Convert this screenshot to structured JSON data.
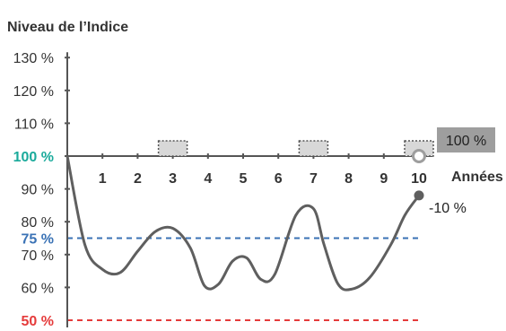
{
  "chart_data": {
    "type": "line",
    "title": "Niveau de l’Indice",
    "xlabel": "Années",
    "x_ticks": [
      "1",
      "2",
      "3",
      "4",
      "5",
      "6",
      "7",
      "8",
      "9",
      "10"
    ],
    "xlim": [
      0,
      10
    ],
    "ylim": [
      50,
      130
    ],
    "y_ticks": [
      {
        "value": 130,
        "label": "130 %"
      },
      {
        "value": 120,
        "label": "120 %"
      },
      {
        "value": 110,
        "label": "110 %"
      },
      {
        "value": 100,
        "label": "100 %"
      },
      {
        "value": 90,
        "label": "90 %"
      },
      {
        "value": 80,
        "label": "80 %"
      },
      {
        "value": 70,
        "label": "70 %"
      },
      {
        "value": 60,
        "label": "60 %"
      }
    ],
    "reference_lines": [
      {
        "value": 100,
        "label": "100 %",
        "color": "#1aaa9b"
      },
      {
        "value": 75,
        "label": "75 %",
        "color": "#3a72b5"
      },
      {
        "value": 50,
        "label": "50 %",
        "color": "#e53b3b"
      }
    ],
    "series": [
      {
        "color": "#5f5f5f",
        "points": [
          [
            0,
            100
          ],
          [
            0.5,
            73
          ],
          [
            1,
            65.5
          ],
          [
            1.5,
            64.5
          ],
          [
            2,
            71
          ],
          [
            2.5,
            77
          ],
          [
            3,
            78
          ],
          [
            3.5,
            72
          ],
          [
            3.9,
            60.5
          ],
          [
            4.3,
            61
          ],
          [
            4.7,
            68
          ],
          [
            5.1,
            69
          ],
          [
            5.5,
            62.5
          ],
          [
            5.9,
            64
          ],
          [
            6.5,
            82
          ],
          [
            7.0,
            84
          ],
          [
            7.3,
            73
          ],
          [
            7.7,
            61
          ],
          [
            8.1,
            59.5
          ],
          [
            8.6,
            63
          ],
          [
            9.2,
            73
          ],
          [
            9.6,
            82
          ],
          [
            10,
            88
          ]
        ]
      }
    ],
    "observation_dates": [
      3,
      7,
      10
    ],
    "observation_color": "#d8d8d8",
    "annotations": [
      {
        "x": 10,
        "y": 100,
        "text": "100 %",
        "style": "box",
        "color": "#9e9e9e"
      },
      {
        "x": 10,
        "y": 88,
        "text": "-10 %",
        "style": "plain"
      }
    ]
  }
}
